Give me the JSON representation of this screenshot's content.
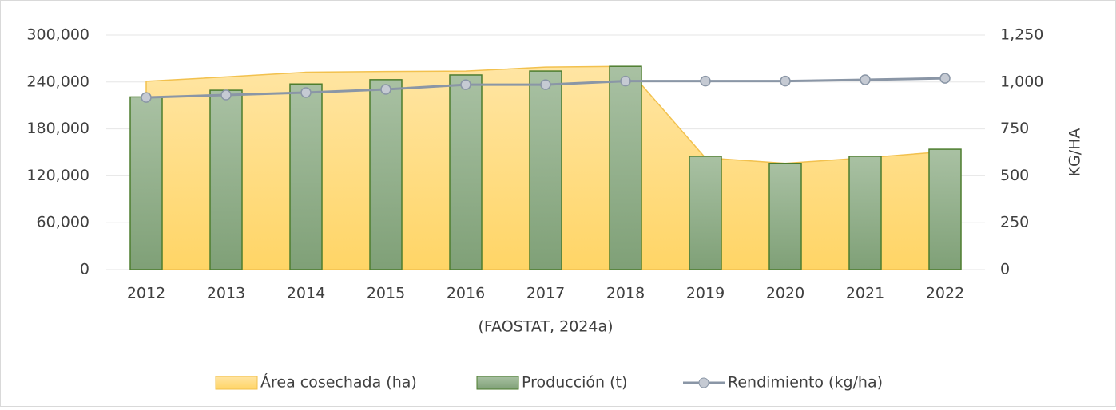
{
  "chart_data": {
    "type": "combo",
    "x_label": "(FAOSTAT, 2024a)",
    "y2_label": "KG/HA",
    "categories": [
      "2012",
      "2013",
      "2014",
      "2015",
      "2016",
      "2017",
      "2018",
      "2019",
      "2020",
      "2021",
      "2022"
    ],
    "series": [
      {
        "name": "Área cosechada (ha)",
        "type": "area",
        "color": "#ffd87a",
        "values": [
          241000,
          246500,
          252500,
          253500,
          254000,
          259000,
          260000,
          143000,
          136000,
          143000,
          151000
        ]
      },
      {
        "name": "Producción (t)",
        "type": "bar",
        "color": "#8fae8a",
        "values": [
          221000,
          229500,
          237500,
          243000,
          249000,
          254000,
          260000,
          145000,
          136000,
          145000,
          154000
        ]
      },
      {
        "name": "Rendimiento (kg/ha)",
        "type": "line",
        "axis": "y2",
        "color": "#8a96a6",
        "values": [
          918,
          931,
          944,
          961,
          986,
          986,
          1005,
          1005,
          1005,
          1012,
          1020
        ]
      }
    ],
    "ylim": [
      0,
      300000
    ],
    "yticks": [
      0,
      {
        "value": 60000,
        "label": "60,000"
      },
      {
        "value": 120000,
        "label": "120,000"
      },
      {
        "value": 180000,
        "label": "180,000"
      },
      {
        "value": 240000,
        "label": "240,000"
      },
      {
        "value": 300000,
        "label": "300,000"
      }
    ],
    "y2lim": [
      0,
      1250
    ],
    "y2ticks": [
      0,
      250,
      500,
      750,
      {
        "value": 1000,
        "label": "1,000"
      },
      {
        "value": 1250,
        "label": "1,250"
      }
    ],
    "grid": true,
    "legend": "bottom"
  }
}
